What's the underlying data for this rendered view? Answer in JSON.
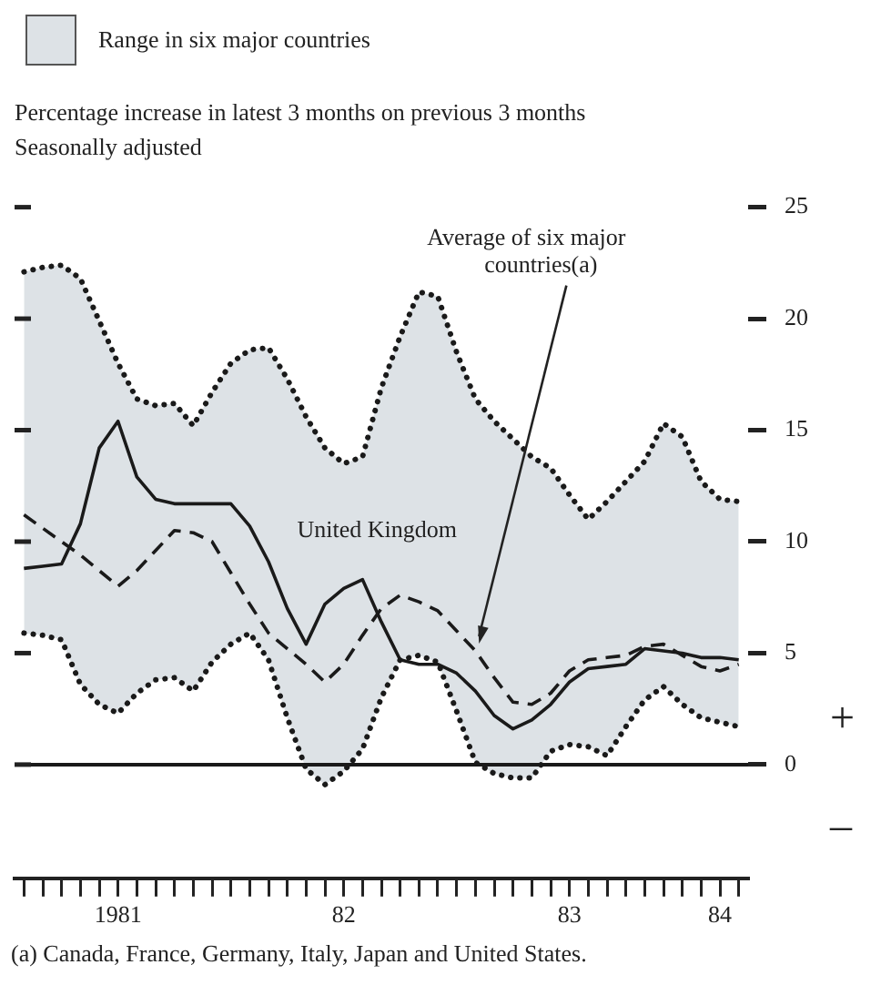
{
  "chart_data": {
    "type": "line",
    "title": "Percentage increase in latest 3 months on previous 3 months",
    "subtitle": "Seasonally adjusted",
    "categories": [
      null,
      null,
      null,
      null,
      null,
      "1981",
      null,
      null,
      null,
      null,
      null,
      null,
      null,
      null,
      null,
      null,
      null,
      "82",
      null,
      null,
      null,
      null,
      null,
      null,
      null,
      null,
      null,
      null,
      null,
      "83",
      null,
      null,
      null,
      null,
      null,
      null,
      null,
      "84",
      null
    ],
    "series": [
      {
        "name": "Range in six major countries",
        "type": "area",
        "color": "#dde2e6",
        "values": [
          null,
          null,
          null,
          null,
          null,
          null,
          null,
          null,
          null,
          null,
          null,
          null,
          null,
          null,
          null,
          null,
          null,
          null,
          null,
          null,
          null,
          null,
          null,
          null,
          null,
          null,
          null,
          null,
          null,
          null,
          null,
          null,
          null,
          null,
          null,
          null,
          null,
          null,
          null
        ],
        "upper": [
          22.1,
          22.3,
          22.4,
          21.8,
          19.9,
          18.0,
          16.4,
          16.1,
          16.2,
          15.2,
          16.7,
          18.0,
          18.6,
          18.7,
          17.3,
          15.6,
          14.2,
          13.5,
          13.8,
          16.9,
          19.2,
          21.2,
          21.0,
          18.5,
          16.4,
          15.4,
          14.6,
          13.8,
          13.3,
          12.1,
          11.0,
          11.8,
          12.7,
          13.6,
          15.3,
          14.7,
          12.7,
          11.9,
          11.8
        ],
        "lower": [
          5.9,
          5.8,
          5.6,
          3.6,
          2.7,
          2.3,
          3.2,
          3.8,
          3.9,
          3.3,
          4.6,
          5.4,
          5.9,
          4.7,
          2.1,
          -0.2,
          -0.9,
          -0.3,
          0.7,
          3.0,
          4.7,
          4.9,
          4.6,
          2.4,
          0.1,
          -0.4,
          -0.6,
          -0.6,
          0.6,
          0.9,
          0.8,
          0.4,
          1.7,
          2.9,
          3.5,
          2.7,
          2.1,
          1.9,
          1.7
        ]
      },
      {
        "color": "#1a1a1a",
        "line_style": "dotted",
        "values": [
          22.1,
          22.3,
          22.4,
          21.8,
          19.9,
          18.0,
          16.4,
          16.1,
          16.2,
          15.2,
          16.7,
          18.0,
          18.6,
          18.7,
          17.3,
          15.6,
          14.2,
          13.5,
          13.8,
          16.9,
          19.2,
          21.2,
          21.0,
          18.5,
          16.4,
          15.4,
          14.6,
          13.8,
          13.3,
          12.1,
          11.0,
          11.8,
          12.7,
          13.6,
          15.3,
          14.7,
          12.7,
          11.9,
          11.8
        ]
      },
      {
        "color": "#1a1a1a",
        "line_style": "dotted",
        "values": [
          5.9,
          5.8,
          5.6,
          3.6,
          2.7,
          2.3,
          3.2,
          3.8,
          3.9,
          3.3,
          4.6,
          5.4,
          5.9,
          4.7,
          2.1,
          -0.2,
          -0.9,
          -0.3,
          0.7,
          3.0,
          4.7,
          4.9,
          4.6,
          2.4,
          0.1,
          -0.4,
          -0.6,
          -0.6,
          0.6,
          0.9,
          0.8,
          0.4,
          1.7,
          2.9,
          3.5,
          2.7,
          2.1,
          1.9,
          1.7
        ]
      },
      {
        "name": "United Kingdom",
        "color": "#1a1a1a",
        "line_style": "solid",
        "values": [
          8.8,
          8.9,
          9.0,
          10.8,
          14.2,
          15.4,
          12.9,
          11.9,
          11.7,
          11.7,
          11.7,
          11.7,
          10.7,
          9.1,
          7.0,
          5.4,
          7.2,
          7.9,
          8.3,
          6.4,
          4.7,
          4.5,
          4.5,
          4.1,
          3.3,
          2.2,
          1.6,
          2.0,
          2.7,
          3.7,
          4.3,
          4.4,
          4.5,
          5.2,
          5.1,
          5.0,
          4.8,
          4.8,
          4.7
        ]
      },
      {
        "name": "Average of six major countries(a)",
        "color": "#1a1a1a",
        "line_style": "dashed",
        "values": [
          11.2,
          10.6,
          10.0,
          9.4,
          8.7,
          8.0,
          8.7,
          9.6,
          10.5,
          10.4,
          10.0,
          8.6,
          7.2,
          5.9,
          5.2,
          4.5,
          3.7,
          4.5,
          5.8,
          7.0,
          7.6,
          7.3,
          6.9,
          6.0,
          5.1,
          3.9,
          2.8,
          2.7,
          3.2,
          4.2,
          4.7,
          4.8,
          4.9,
          5.3,
          5.4,
          4.9,
          4.4,
          4.2,
          4.5
        ]
      }
    ],
    "ylim": [
      -5.1,
      25
    ],
    "yticks": [
      0,
      5,
      10,
      15,
      20,
      25
    ],
    "ref_lines": [
      {
        "axis": "y",
        "value": 0,
        "color": "#1a1a1a"
      }
    ],
    "grid": false,
    "legend": "top left",
    "marker": "none",
    "annotations": [
      "+",
      "–",
      "(a)  Canada, France, Germany, Italy, Japan and United States."
    ]
  }
}
